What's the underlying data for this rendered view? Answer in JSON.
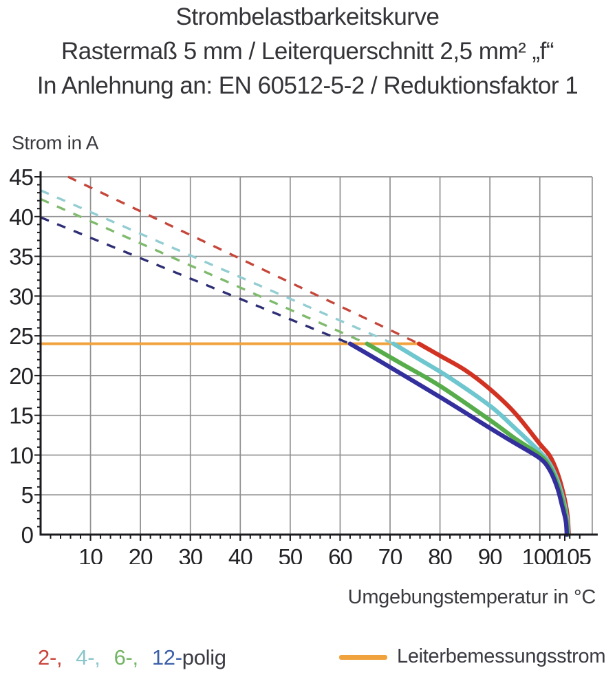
{
  "title": {
    "line1": "Strombelastbarkeitskurve",
    "line2": "Rastermaß 5 mm / Leiterquerschnitt 2,5 mm² „f“",
    "line3": "In Anlehnung an: EN 60512-5-2 / Reduktionsfaktor 1"
  },
  "chart_data": {
    "type": "line",
    "title": "Strombelastbarkeitskurve Rastermaß 5 mm / Leiterquerschnitt 2,5 mm² „f“ / In Anlehnung an: EN 60512-5-2 / Reduktionsfaktor 1",
    "xlabel": "Umgebungstemperatur in °C",
    "ylabel": "Strom in A",
    "xlim": [
      0,
      110.5
    ],
    "ylim": [
      0,
      45
    ],
    "x_major_ticks": [
      10,
      20,
      30,
      40,
      50,
      60,
      70,
      80,
      90,
      100,
      105
    ],
    "x_gridlines": [
      10,
      20,
      30,
      40,
      50,
      60,
      70,
      80,
      90,
      100,
      110.5
    ],
    "x_minor_step": 2,
    "y_major_ticks": [
      0,
      5,
      10,
      15,
      20,
      25,
      30,
      35,
      40,
      45
    ],
    "y_gridlines": [
      5,
      10,
      15,
      20,
      25,
      30,
      35,
      40,
      45
    ],
    "y_minor_step": 1,
    "grid": true,
    "grid_color": "#8f8f8f",
    "axis_color": "#1b1b1f",
    "tick_label_color": "#222226",
    "reference_line": {
      "name": "Leiterbemessungsstrom",
      "value": 24,
      "x_start": 0,
      "x_end": 75.8,
      "color": "#f0a23c"
    },
    "series": [
      {
        "name": "2-polig",
        "color": "#d23222",
        "dash_color": "#c5473b",
        "dashed_segment": [
          [
            5.5,
            45
          ],
          [
            75.8,
            24
          ]
        ],
        "solid_points": [
          [
            75.8,
            24
          ],
          [
            80,
            22.5
          ],
          [
            85,
            20.7
          ],
          [
            90,
            18.3
          ],
          [
            95,
            15.3
          ],
          [
            100,
            11.4
          ],
          [
            102,
            9.9
          ],
          [
            103.5,
            7.8
          ],
          [
            104.7,
            5.2
          ],
          [
            105.5,
            2.6
          ],
          [
            105.8,
            0
          ]
        ]
      },
      {
        "name": "4-polig",
        "color": "#6ec6ce",
        "dash_color": "#93cdd2",
        "dashed_segment": [
          [
            0,
            43.3
          ],
          [
            70.7,
            24
          ]
        ],
        "solid_points": [
          [
            70.7,
            24
          ],
          [
            76,
            22.0
          ],
          [
            82,
            19.7
          ],
          [
            90,
            16.2
          ],
          [
            95,
            13.4
          ],
          [
            100,
            10.4
          ],
          [
            102,
            8.9
          ],
          [
            103.5,
            6.9
          ],
          [
            104.7,
            4.4
          ],
          [
            105.4,
            2.2
          ],
          [
            105.7,
            0
          ]
        ]
      },
      {
        "name": "6-polig",
        "color": "#57ad4c",
        "dash_color": "#7fba6d",
        "dashed_segment": [
          [
            0,
            42.2
          ],
          [
            65.4,
            24
          ]
        ],
        "solid_points": [
          [
            65.4,
            24
          ],
          [
            72,
            21.6
          ],
          [
            80,
            18.7
          ],
          [
            90,
            14.4
          ],
          [
            95,
            12.1
          ],
          [
            100,
            10.0
          ],
          [
            102,
            8.5
          ],
          [
            103.5,
            6.4
          ],
          [
            104.6,
            4.1
          ],
          [
            105.3,
            2.0
          ],
          [
            105.6,
            0
          ]
        ]
      },
      {
        "name": "12-polig",
        "color": "#332f9c",
        "dash_color": "#2e2e75",
        "dashed_segment": [
          [
            0,
            39.9
          ],
          [
            62,
            24
          ]
        ],
        "solid_points": [
          [
            62,
            24
          ],
          [
            68,
            21.8
          ],
          [
            80,
            17.3
          ],
          [
            90,
            13.4
          ],
          [
            95,
            11.5
          ],
          [
            100,
            9.6
          ],
          [
            102,
            8.1
          ],
          [
            103.5,
            5.9
          ],
          [
            104.4,
            3.8
          ],
          [
            105.2,
            1.7
          ],
          [
            105.4,
            0
          ]
        ]
      }
    ]
  },
  "legend": {
    "pole_items": [
      {
        "label": "2-,",
        "color": "#c9453c"
      },
      {
        "label": "4-,",
        "color": "#8ac6cb"
      },
      {
        "label": "6-,",
        "color": "#74b465"
      },
      {
        "label": "12-",
        "color": "#3c60a8"
      }
    ],
    "pole_suffix": "polig",
    "reference_label": "Leiterbemessungsstrom",
    "reference_color": "#f0a23c"
  }
}
